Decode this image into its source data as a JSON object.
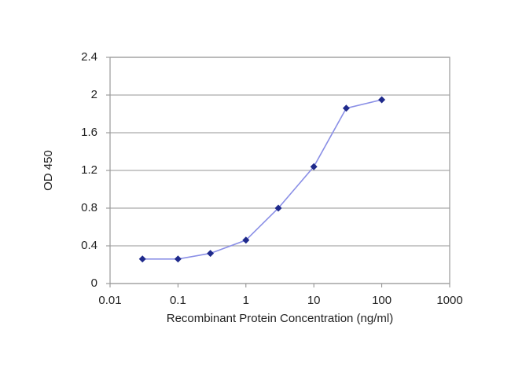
{
  "chart_data": {
    "type": "line",
    "xlabel": "Recombinant Protein Concentration (ng/ml)",
    "ylabel": "OD 450",
    "x": [
      0.03,
      0.1,
      0.3,
      1,
      3,
      10,
      30,
      100
    ],
    "series": [
      {
        "color": "#8a8fe6",
        "marker_color": "#1f2a8c",
        "values": [
          0.26,
          0.26,
          0.32,
          0.46,
          0.8,
          1.24,
          1.86,
          1.95
        ]
      }
    ],
    "xscale": "log",
    "xlim": [
      0.01,
      1000
    ],
    "xticks": [
      0.01,
      0.1,
      1,
      10,
      100,
      1000
    ],
    "ylim": [
      0,
      2.4
    ],
    "yticks": [
      0,
      0.4,
      0.8,
      1.2,
      1.6,
      2,
      2.4
    ],
    "grid": true
  }
}
